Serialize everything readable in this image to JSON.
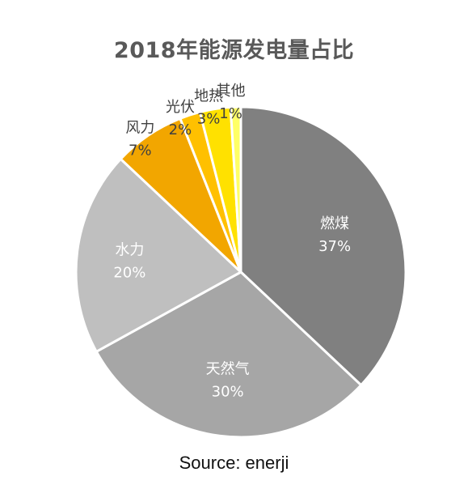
{
  "chart_data": {
    "type": "pie",
    "title": "2018年能源发电量占比",
    "slices": [
      {
        "label": "燃煤",
        "value": 37,
        "value_label": "37%",
        "color": "#808080",
        "text_color": "#ffffff"
      },
      {
        "label": "天然气",
        "value": 30,
        "value_label": "30%",
        "color": "#a6a6a6",
        "text_color": "#ffffff"
      },
      {
        "label": "水力",
        "value": 20,
        "value_label": "20%",
        "color": "#bfbfbf",
        "text_color": "#ffffff"
      },
      {
        "label": "风力",
        "value": 7,
        "value_label": "7%",
        "color": "#f2a600",
        "text_color": "#404040"
      },
      {
        "label": "光伏",
        "value": 2,
        "value_label": "2%",
        "color": "#ffc000",
        "text_color": "#404040"
      },
      {
        "label": "地热",
        "value": 3,
        "value_label": "3%",
        "color": "#ffe100",
        "text_color": "#404040"
      },
      {
        "label": "其他",
        "value": 1,
        "value_label": "1%",
        "color": "#ffff66",
        "text_color": "#404040"
      }
    ],
    "start_angle_deg": 0,
    "direction": "clockwise",
    "legend": "none"
  },
  "source": "Source: enerji"
}
